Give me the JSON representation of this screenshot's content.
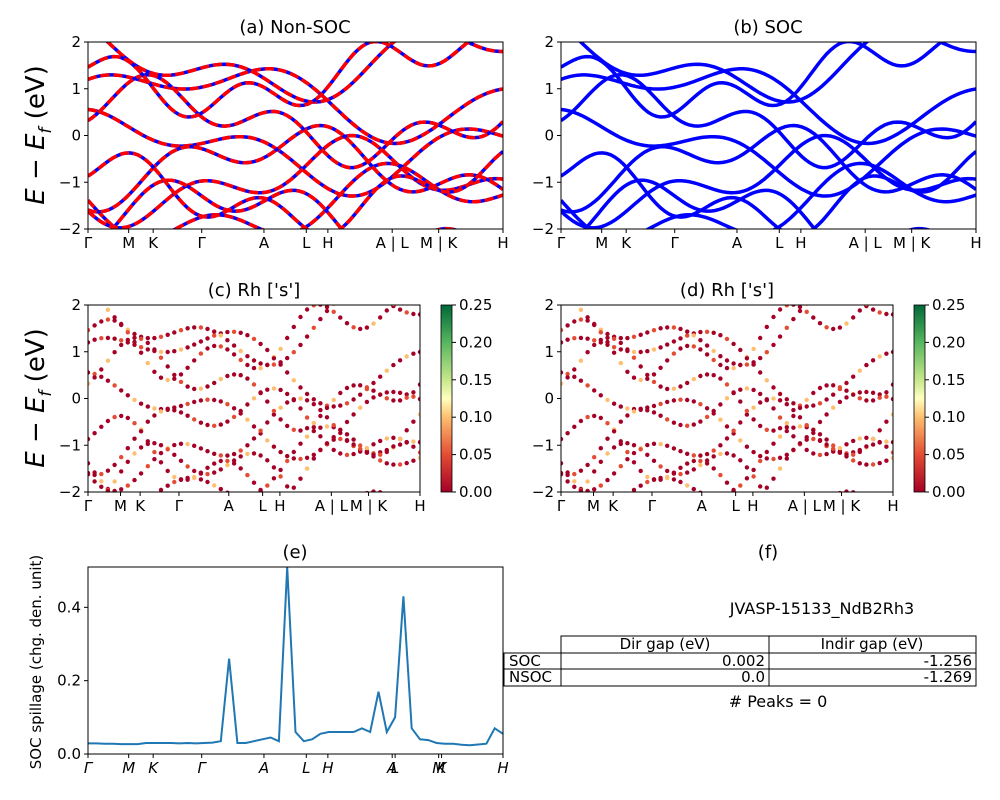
{
  "chart_data": [
    {
      "type": "line",
      "title": "(a) Non-SOC",
      "ylabel_main": "E − E",
      "ylabel_sub": "f",
      "ylabel_unit": " (eV)",
      "ylim": [
        -2,
        2
      ],
      "yticks": [
        "2",
        "1",
        "0",
        "−1",
        "−2"
      ],
      "kpath": [
        "Γ",
        "M",
        "K",
        "Γ",
        "A",
        "L",
        "H",
        "A | L",
        "M | K",
        "H"
      ],
      "colors": {
        "up": "#0000ff",
        "down": "#ff0000"
      },
      "style": "dashed red over blue"
    },
    {
      "type": "line",
      "title": "(b) SOC",
      "ylim": [
        -2,
        2
      ],
      "yticks": [
        "2",
        "1",
        "0",
        "−1",
        "−2"
      ],
      "kpath": [
        "Γ",
        "M",
        "K",
        "Γ",
        "A",
        "L",
        "H",
        "A | L",
        "M | K",
        "H"
      ],
      "colors": {
        "line": "#0000ff"
      }
    },
    {
      "type": "scatter",
      "title": "(c)  Rh ['s']",
      "ylabel_main": "E − E",
      "ylabel_sub": "f",
      "ylabel_unit": " (eV)",
      "ylim": [
        -2,
        2
      ],
      "yticks": [
        "2",
        "1",
        "0",
        "−1",
        "−2"
      ],
      "kpath": [
        "Γ",
        "M",
        "K",
        "Γ",
        "A",
        "L",
        "H",
        "A | L",
        "M | K",
        "H"
      ],
      "colorbar_ticks": [
        "0.25",
        "0.20",
        "0.15",
        "0.10",
        "0.05",
        "0.00"
      ],
      "colormap": "RdYlGn"
    },
    {
      "type": "scatter",
      "title": "(d) Rh ['s']",
      "ylim": [
        -2,
        2
      ],
      "yticks": [
        "2",
        "1",
        "0",
        "−1",
        "−2"
      ],
      "kpath": [
        "Γ",
        "M",
        "K",
        "Γ",
        "A",
        "L",
        "H",
        "A | L",
        "M | K",
        "H"
      ],
      "colorbar_ticks": [
        "0.25",
        "0.20",
        "0.15",
        "0.10",
        "0.05",
        "0.00"
      ],
      "colormap": "RdYlGn"
    },
    {
      "type": "line",
      "title": "(e)",
      "ylabel": "SOC spillage (chg. den. unit)",
      "ylim": [
        0,
        0.51
      ],
      "yticks": [
        "0.0",
        "0.2",
        "0.4"
      ],
      "xticks": [
        "Γ",
        "M",
        "K",
        "Γ",
        "A",
        "L",
        "H",
        "A",
        "L",
        "M",
        "K",
        "H"
      ],
      "color": "#1f77b4",
      "x": [
        0,
        2,
        4,
        6,
        8,
        10,
        12,
        14,
        16,
        18,
        20,
        22,
        24,
        26,
        28,
        30,
        32,
        34,
        36,
        38,
        40,
        42,
        44,
        46,
        48,
        50,
        52,
        54,
        56,
        58,
        60,
        62,
        64,
        66,
        68,
        70,
        72,
        74,
        76,
        78,
        80,
        82,
        84,
        86,
        88,
        90,
        92,
        94,
        96,
        98,
        100
      ],
      "values": [
        0.029,
        0.029,
        0.028,
        0.028,
        0.027,
        0.027,
        0.027,
        0.03,
        0.03,
        0.03,
        0.03,
        0.029,
        0.03,
        0.029,
        0.03,
        0.031,
        0.035,
        0.26,
        0.03,
        0.03,
        0.035,
        0.04,
        0.045,
        0.035,
        0.51,
        0.06,
        0.035,
        0.04,
        0.055,
        0.06,
        0.06,
        0.06,
        0.06,
        0.07,
        0.06,
        0.17,
        0.06,
        0.1,
        0.43,
        0.07,
        0.04,
        0.038,
        0.03,
        0.028,
        0.028,
        0.025,
        0.024,
        0.026,
        0.028,
        0.07,
        0.055
      ]
    }
  ],
  "table": {
    "title": "(f)",
    "caption": "JVASP-15133_NdB2Rh3",
    "headers": [
      "",
      "Dir gap (eV)",
      "Indir gap (eV)"
    ],
    "rows": [
      [
        "SOC",
        "0.002",
        "-1.256"
      ],
      [
        "NSOC",
        "0.0",
        "-1.269"
      ]
    ],
    "footer": "# Peaks = 0"
  }
}
